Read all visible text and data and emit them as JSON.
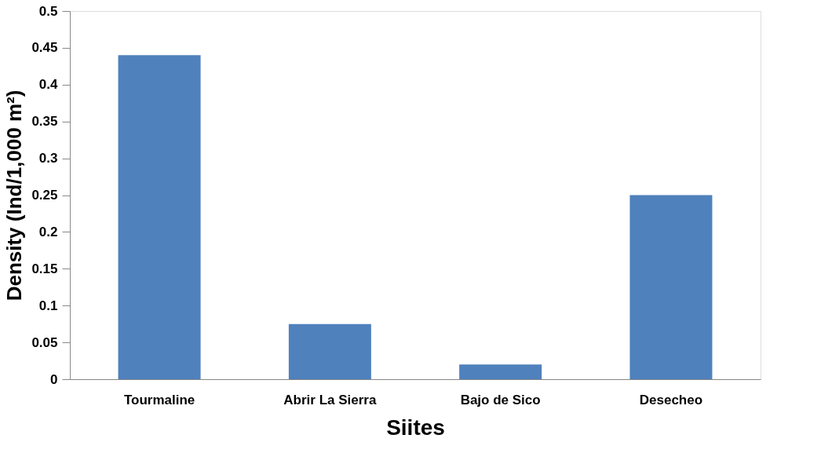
{
  "chart_data": {
    "type": "bar",
    "xlabel": "Siites",
    "ylabel": "Density (Ind/1,000 m²)",
    "categories": [
      "Tourmaline",
      "Abrir La Sierra",
      "Bajo de Sico",
      "Desecheo"
    ],
    "values": [
      0.44,
      0.075,
      0.02,
      0.25
    ],
    "color": "#4f81bd",
    "ylim": [
      0,
      0.5
    ],
    "yticks": [
      0,
      0.05,
      0.1,
      0.15,
      0.2,
      0.25,
      0.3,
      0.35,
      0.4,
      0.45,
      0.5
    ],
    "grid": false
  }
}
